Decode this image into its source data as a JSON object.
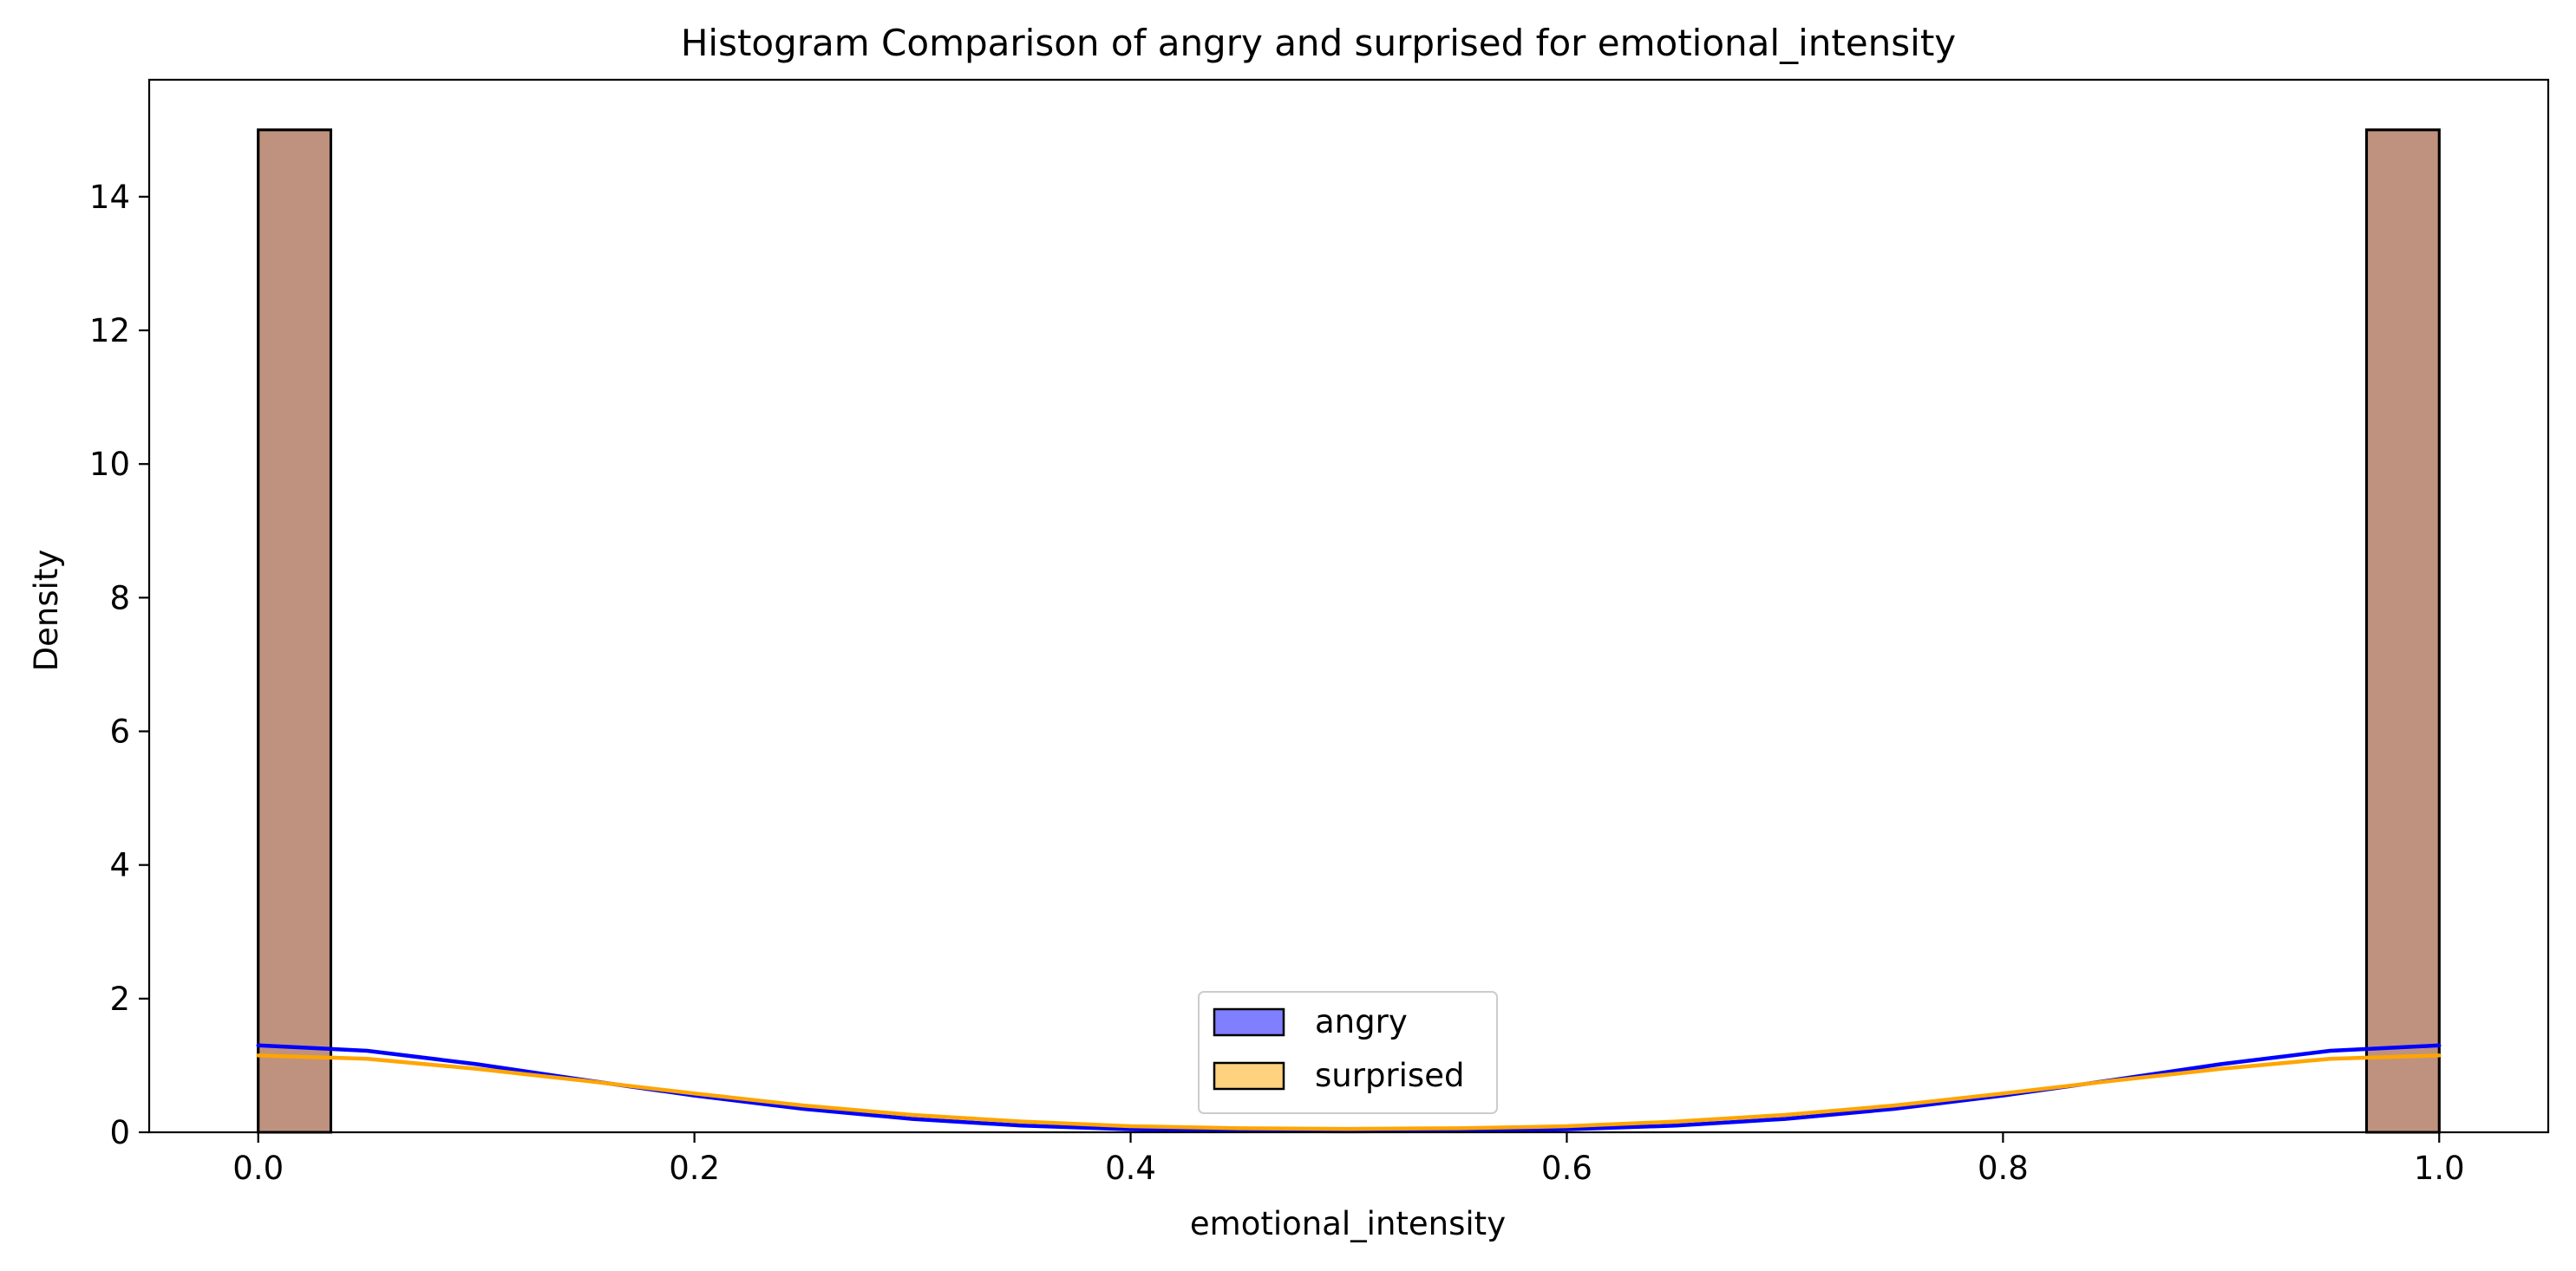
{
  "chart_data": {
    "type": "histogram",
    "title": "Histogram Comparison of angry and surprised for emotional_intensity",
    "xlabel": "emotional_intensity",
    "ylabel": "Density",
    "xlim": [
      -0.05,
      1.05
    ],
    "ylim": [
      0,
      15.75
    ],
    "x_ticks": [
      0.0,
      0.2,
      0.4,
      0.6,
      0.8,
      1.0
    ],
    "x_tick_labels": [
      "0.0",
      "0.2",
      "0.4",
      "0.6",
      "0.8",
      "1.0"
    ],
    "y_ticks": [
      0,
      2,
      4,
      6,
      8,
      10,
      12,
      14
    ],
    "y_tick_labels": [
      "0",
      "2",
      "4",
      "6",
      "8",
      "10",
      "12",
      "14"
    ],
    "grid": false,
    "legend_position": "lower-center",
    "series": [
      {
        "name": "angry",
        "fill": "#0000ff",
        "fill_opacity": 0.5,
        "kde_color": "#0000ff",
        "bins": [
          {
            "x0": 0.0,
            "x1": 0.0333,
            "density": 15.0
          },
          {
            "x0": 0.9667,
            "x1": 1.0,
            "density": 15.0
          }
        ],
        "kde": [
          [
            0.0,
            1.3
          ],
          [
            0.05,
            1.22
          ],
          [
            0.1,
            1.02
          ],
          [
            0.15,
            0.78
          ],
          [
            0.2,
            0.55
          ],
          [
            0.25,
            0.35
          ],
          [
            0.3,
            0.2
          ],
          [
            0.35,
            0.1
          ],
          [
            0.4,
            0.045
          ],
          [
            0.45,
            0.02
          ],
          [
            0.5,
            0.015
          ],
          [
            0.55,
            0.02
          ],
          [
            0.6,
            0.045
          ],
          [
            0.65,
            0.1
          ],
          [
            0.7,
            0.2
          ],
          [
            0.75,
            0.35
          ],
          [
            0.8,
            0.55
          ],
          [
            0.85,
            0.78
          ],
          [
            0.9,
            1.02
          ],
          [
            0.95,
            1.22
          ],
          [
            1.0,
            1.3
          ]
        ]
      },
      {
        "name": "surprised",
        "fill": "#ffa500",
        "fill_opacity": 0.5,
        "kde_color": "#ffa500",
        "bins": [
          {
            "x0": 0.0,
            "x1": 0.0333,
            "density": 15.0
          },
          {
            "x0": 0.9667,
            "x1": 1.0,
            "density": 15.0
          }
        ],
        "kde": [
          [
            0.0,
            1.15
          ],
          [
            0.05,
            1.1
          ],
          [
            0.1,
            0.95
          ],
          [
            0.15,
            0.77
          ],
          [
            0.2,
            0.58
          ],
          [
            0.25,
            0.4
          ],
          [
            0.3,
            0.26
          ],
          [
            0.35,
            0.16
          ],
          [
            0.4,
            0.09
          ],
          [
            0.45,
            0.06
          ],
          [
            0.5,
            0.05
          ],
          [
            0.55,
            0.06
          ],
          [
            0.6,
            0.09
          ],
          [
            0.65,
            0.16
          ],
          [
            0.7,
            0.26
          ],
          [
            0.75,
            0.4
          ],
          [
            0.8,
            0.58
          ],
          [
            0.85,
            0.77
          ],
          [
            0.9,
            0.95
          ],
          [
            0.95,
            1.1
          ],
          [
            1.0,
            1.15
          ]
        ]
      }
    ]
  }
}
